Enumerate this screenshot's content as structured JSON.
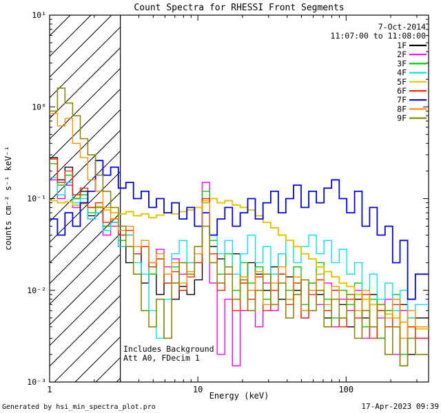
{
  "title": "Count Spectra for RHESSI Front Segments",
  "header": {
    "date": "7-Oct-2014",
    "time_range": "11:07:00 to 11:08:00"
  },
  "annotations": [
    "Includes Background",
    "Att A0, FDecim 1"
  ],
  "footer": {
    "left": "Generated by hsi_min_spectra_plot.pro",
    "right": "17-Apr-2023 09:39"
  },
  "chart_data": {
    "type": "line",
    "subtype": "step-histogram-log-log",
    "title": "Count Spectra for RHESSI Front Segments",
    "xlabel": "Energy (keV)",
    "ylabel": "counts cm⁻² s⁻¹ keV⁻¹",
    "xscale": "log",
    "yscale": "log",
    "xlim": [
      1,
      360
    ],
    "ylim": [
      0.001,
      10
    ],
    "grid": false,
    "legend_position": "top-right",
    "x_ticks": [
      {
        "v": 1,
        "label": "1"
      },
      {
        "v": 10,
        "label": "10"
      },
      {
        "v": 100,
        "label": "100"
      }
    ],
    "y_ticks": [
      {
        "v": 10,
        "label": "10¹"
      },
      {
        "v": 1,
        "label": "10⁰"
      },
      {
        "v": 0.1,
        "label": "10⁻¹"
      },
      {
        "v": 0.01,
        "label": "10⁻²"
      },
      {
        "v": 0.001,
        "label": "10⁻³"
      }
    ],
    "hatch_region": {
      "xmin": 1,
      "xmax": 3
    },
    "energies": [
      1.0,
      1.13,
      1.27,
      1.43,
      1.61,
      1.81,
      2.04,
      2.29,
      2.58,
      2.91,
      3.27,
      3.68,
      4.15,
      4.67,
      5.25,
      5.91,
      6.66,
      7.49,
      8.43,
      9.49,
      10.7,
      12.0,
      13.5,
      15.2,
      17.1,
      19.3,
      21.7,
      24.4,
      27.5,
      31.0,
      34.9,
      39.2,
      44.2,
      49.7,
      56.0,
      63.0,
      70.9,
      79.8,
      89.8,
      101,
      114,
      128,
      144,
      162,
      183,
      206,
      231,
      260,
      293
    ],
    "series": [
      {
        "name": "1F",
        "color": "#000000",
        "lw": 1.4,
        "values": [
          0.28,
          0.16,
          0.22,
          0.1,
          0.12,
          0.065,
          0.08,
          0.05,
          0.055,
          0.03,
          0.02,
          0.025,
          0.012,
          0.015,
          0.009,
          0.012,
          0.008,
          0.011,
          0.009,
          0.013,
          0.095,
          0.03,
          0.022,
          0.018,
          0.025,
          0.012,
          0.02,
          0.015,
          0.01,
          0.018,
          0.008,
          0.014,
          0.01,
          0.006,
          0.012,
          0.009,
          0.005,
          0.01,
          0.007,
          0.004,
          0.008,
          0.005,
          0.009,
          0.003,
          0.006,
          0.004,
          0.007,
          0.002,
          0.005
        ]
      },
      {
        "name": "2F",
        "color": "#ff00ff",
        "lw": 1.4,
        "values": [
          0.16,
          0.1,
          0.14,
          0.08,
          0.09,
          0.06,
          0.07,
          0.04,
          0.05,
          0.035,
          0.04,
          0.025,
          0.03,
          0.02,
          0.028,
          0.018,
          0.022,
          0.015,
          0.02,
          0.03,
          0.15,
          0.012,
          0.002,
          0.008,
          0.0015,
          0.006,
          0.01,
          0.004,
          0.012,
          0.006,
          0.015,
          0.008,
          0.012,
          0.005,
          0.01,
          0.007,
          0.012,
          0.004,
          0.008,
          0.006,
          0.01,
          0.003,
          0.007,
          0.005,
          0.008,
          0.002,
          0.006,
          0.004,
          0.003
        ]
      },
      {
        "name": "3F",
        "color": "#00cc00",
        "lw": 1.4,
        "values": [
          0.24,
          0.14,
          0.18,
          0.1,
          0.11,
          0.07,
          0.08,
          0.05,
          0.06,
          0.035,
          0.045,
          0.025,
          0.03,
          0.015,
          0.022,
          0.012,
          0.018,
          0.01,
          0.015,
          0.02,
          0.12,
          0.035,
          0.015,
          0.025,
          0.01,
          0.02,
          0.012,
          0.018,
          0.008,
          0.015,
          0.025,
          0.01,
          0.018,
          0.007,
          0.012,
          0.02,
          0.008,
          0.005,
          0.01,
          0.007,
          0.012,
          0.004,
          0.008,
          0.003,
          0.006,
          0.009,
          0.002,
          0.005,
          0.004
        ]
      },
      {
        "name": "4F",
        "color": "#00e5ee",
        "lw": 1.4,
        "values": [
          0.17,
          0.11,
          0.15,
          0.09,
          0.1,
          0.06,
          0.07,
          0.045,
          0.055,
          0.03,
          0.04,
          0.02,
          0.015,
          0.006,
          0.003,
          0.008,
          0.025,
          0.035,
          0.02,
          0.03,
          0.09,
          0.04,
          0.025,
          0.035,
          0.015,
          0.025,
          0.04,
          0.02,
          0.03,
          0.015,
          0.025,
          0.035,
          0.02,
          0.03,
          0.04,
          0.025,
          0.035,
          0.02,
          0.028,
          0.015,
          0.02,
          0.01,
          0.015,
          0.008,
          0.012,
          0.006,
          0.01,
          0.005,
          0.007
        ]
      },
      {
        "name": "5F",
        "color": "#e3c500",
        "lw": 2.0,
        "values": [
          0.095,
          0.09,
          0.092,
          0.085,
          0.088,
          0.08,
          0.082,
          0.075,
          0.07,
          0.068,
          0.072,
          0.065,
          0.068,
          0.062,
          0.066,
          0.07,
          0.068,
          0.072,
          0.075,
          0.08,
          0.095,
          0.1,
          0.09,
          0.095,
          0.085,
          0.08,
          0.075,
          0.065,
          0.055,
          0.048,
          0.04,
          0.035,
          0.03,
          0.025,
          0.022,
          0.018,
          0.016,
          0.014,
          0.012,
          0.011,
          0.009,
          0.008,
          0.007,
          0.006,
          0.0055,
          0.005,
          0.0045,
          0.004,
          0.0038
        ]
      },
      {
        "name": "6F",
        "color": "#ff2200",
        "lw": 1.4,
        "values": [
          0.27,
          0.15,
          0.2,
          0.11,
          0.13,
          0.08,
          0.09,
          0.055,
          0.06,
          0.04,
          0.045,
          0.025,
          0.03,
          0.018,
          0.022,
          0.012,
          0.016,
          0.01,
          0.014,
          0.02,
          0.1,
          0.025,
          0.01,
          0.015,
          0.006,
          0.012,
          0.008,
          0.014,
          0.006,
          0.01,
          0.015,
          0.007,
          0.012,
          0.005,
          0.009,
          0.013,
          0.006,
          0.01,
          0.004,
          0.008,
          0.005,
          0.009,
          0.003,
          0.006,
          0.004,
          0.007,
          0.0015,
          0.004,
          0.003
        ]
      },
      {
        "name": "7F",
        "color": "#0000ee",
        "lw": 1.8,
        "values": [
          0.06,
          0.04,
          0.07,
          0.05,
          0.09,
          0.12,
          0.26,
          0.18,
          0.22,
          0.13,
          0.15,
          0.1,
          0.12,
          0.08,
          0.1,
          0.07,
          0.09,
          0.06,
          0.08,
          0.05,
          0.07,
          0.04,
          0.06,
          0.08,
          0.05,
          0.07,
          0.1,
          0.06,
          0.09,
          0.12,
          0.07,
          0.1,
          0.14,
          0.08,
          0.12,
          0.09,
          0.13,
          0.16,
          0.1,
          0.07,
          0.12,
          0.05,
          0.08,
          0.04,
          0.05,
          0.02,
          0.035,
          0.008,
          0.015
        ]
      },
      {
        "name": "8F",
        "color": "#ff9100",
        "lw": 1.4,
        "values": [
          0.85,
          0.62,
          0.75,
          0.4,
          0.28,
          0.16,
          0.12,
          0.08,
          0.06,
          0.045,
          0.05,
          0.03,
          0.035,
          0.02,
          0.025,
          0.015,
          0.02,
          0.012,
          0.016,
          0.025,
          0.09,
          0.02,
          0.012,
          0.018,
          0.008,
          0.014,
          0.01,
          0.016,
          0.007,
          0.012,
          0.018,
          0.008,
          0.014,
          0.006,
          0.01,
          0.015,
          0.007,
          0.011,
          0.005,
          0.009,
          0.006,
          0.01,
          0.004,
          0.007,
          0.005,
          0.008,
          0.003,
          0.006,
          0.004
        ]
      },
      {
        "name": "9F",
        "color": "#8a8a00",
        "lw": 1.6,
        "values": [
          0.9,
          1.6,
          1.1,
          0.8,
          0.45,
          0.3,
          0.18,
          0.12,
          0.08,
          0.05,
          0.03,
          0.015,
          0.006,
          0.004,
          0.008,
          0.003,
          0.012,
          0.02,
          0.015,
          0.03,
          0.05,
          0.02,
          0.012,
          0.018,
          0.008,
          0.013,
          0.006,
          0.01,
          0.015,
          0.007,
          0.012,
          0.005,
          0.009,
          0.013,
          0.006,
          0.01,
          0.004,
          0.008,
          0.005,
          0.009,
          0.003,
          0.006,
          0.004,
          0.007,
          0.002,
          0.004,
          0.0015,
          0.003,
          0.002
        ]
      }
    ]
  }
}
